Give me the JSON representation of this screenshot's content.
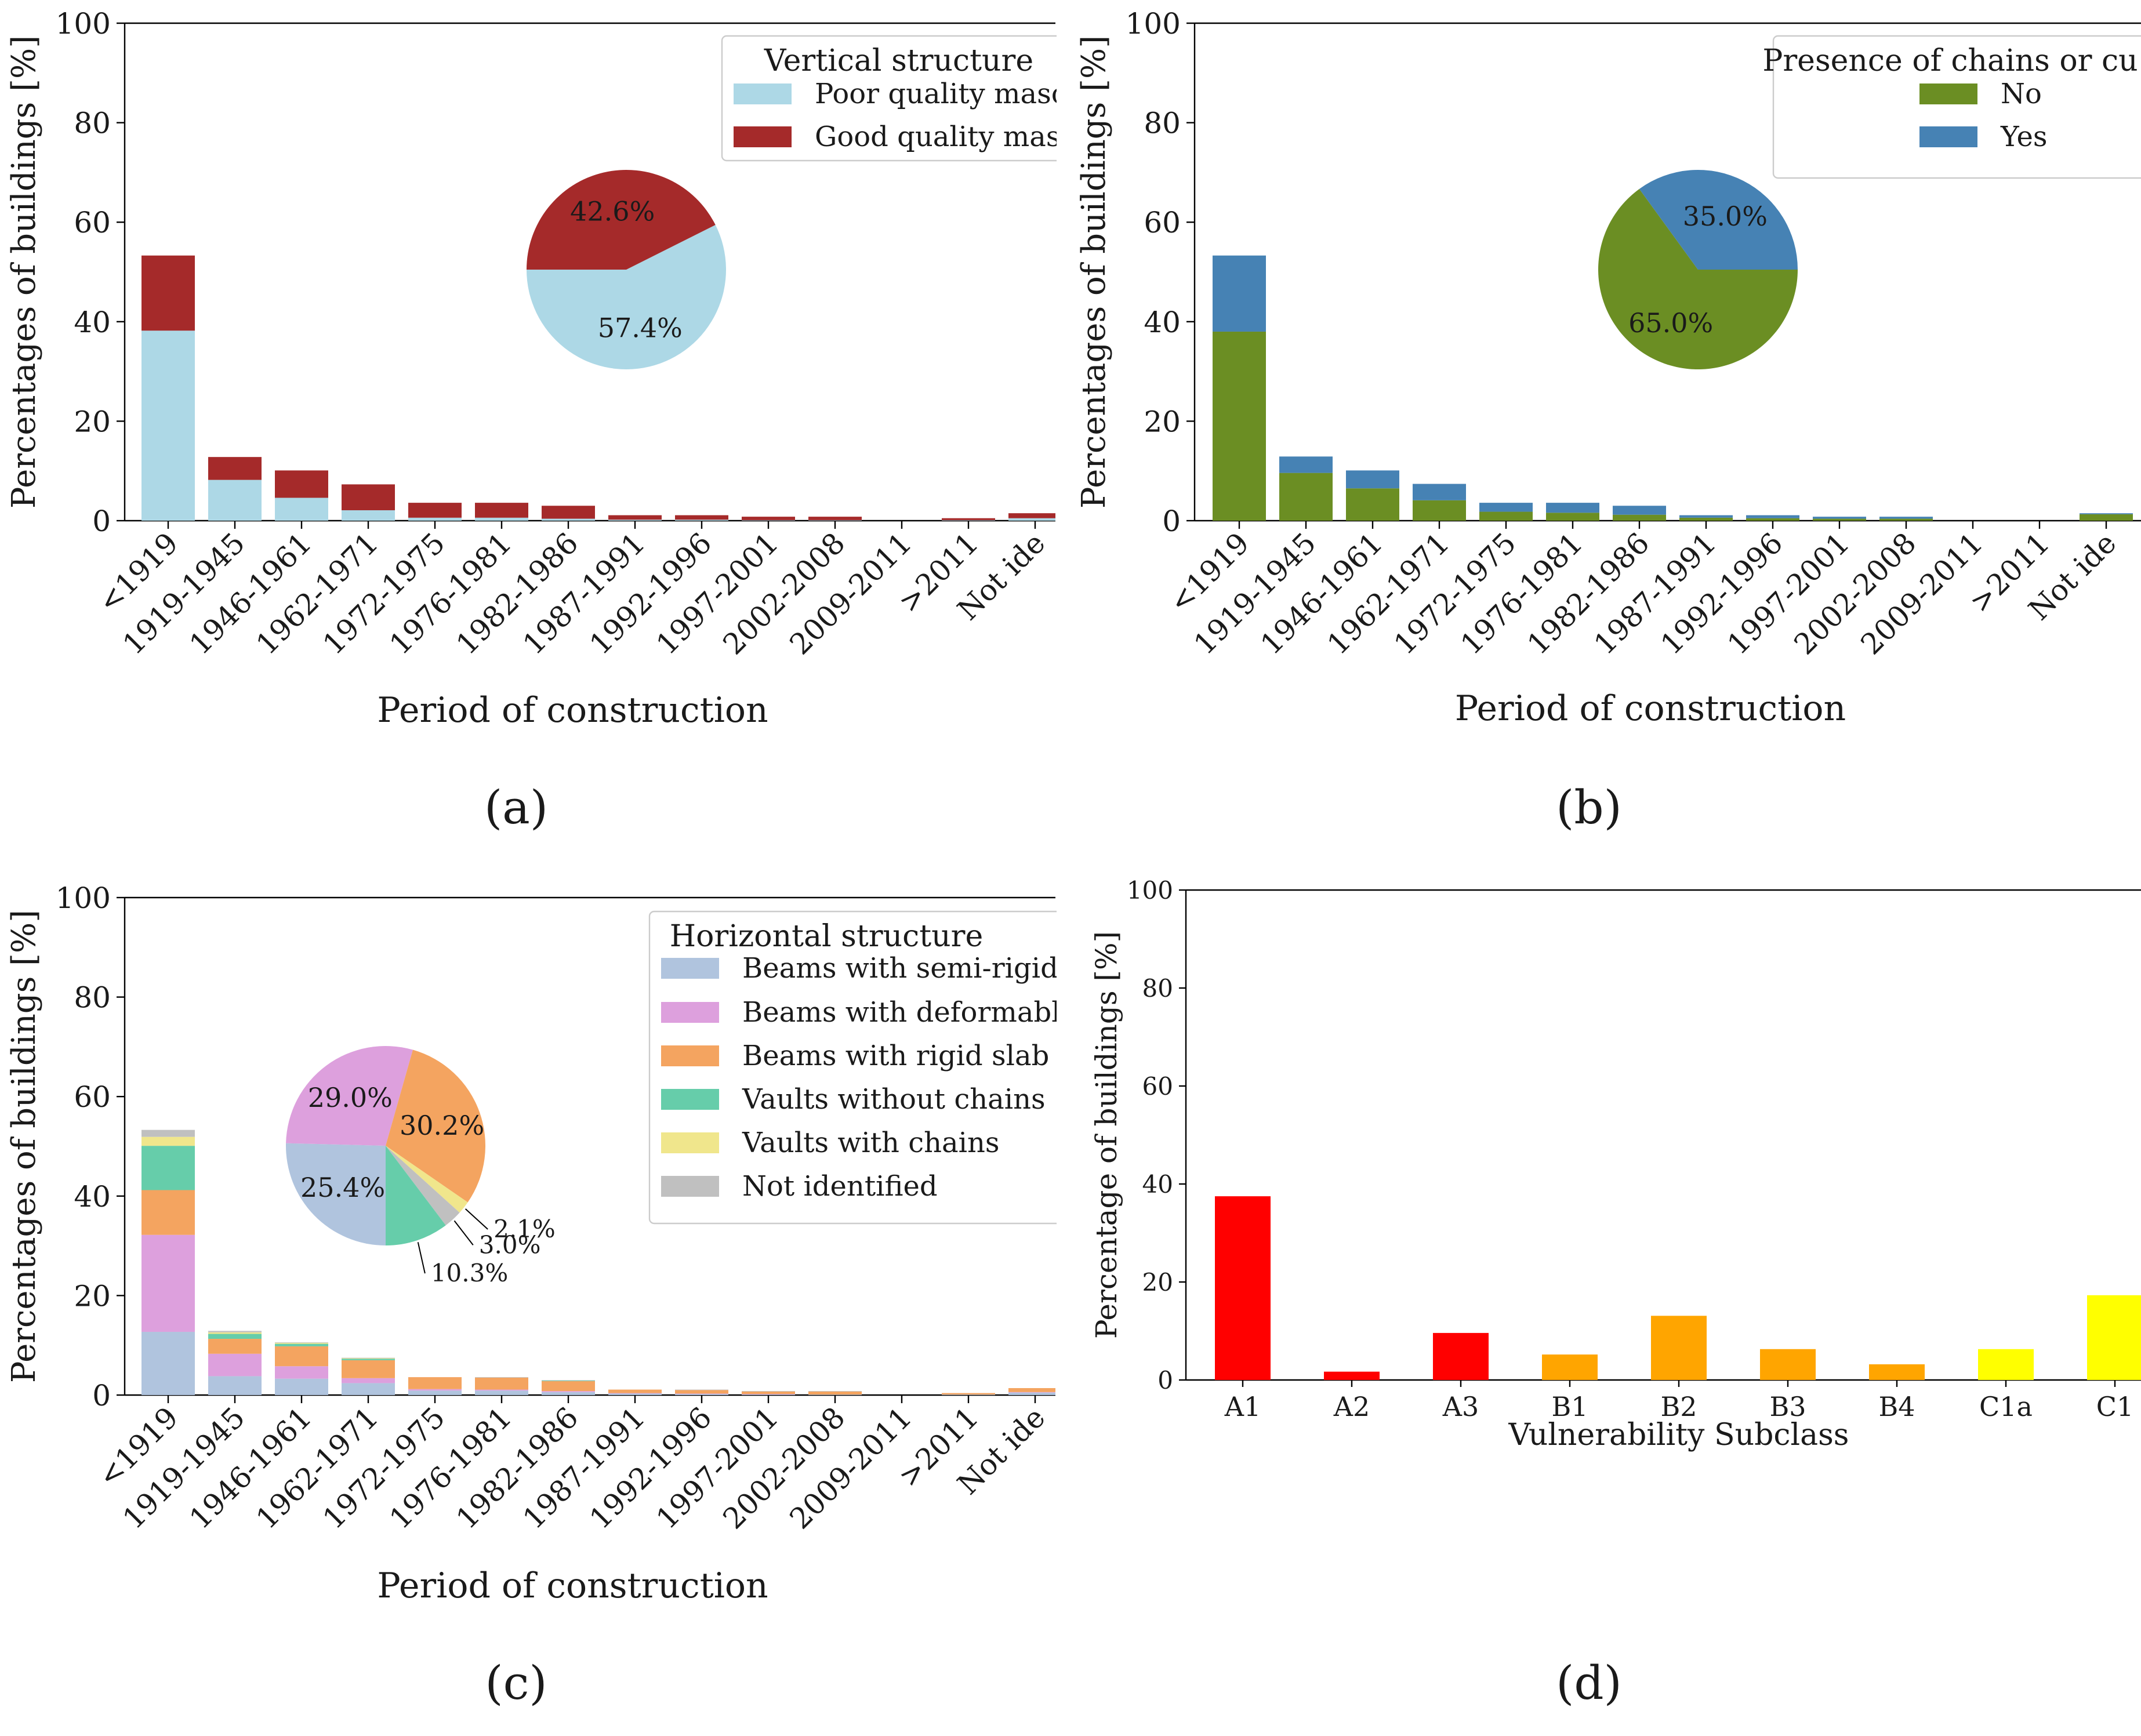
{
  "colors": {
    "poor_masonry": "#add8e6",
    "good_masonry": "#a52a2a",
    "no_chains": "#6b8e23",
    "yes_chains": "#4682b4",
    "semi_rigid": "#b0c4de",
    "deformable": "#dda0dd",
    "rigid": "#f4a460",
    "vaults_no_chains": "#66cdaa",
    "vaults_chains": "#f0e68c",
    "not_identified": "#c0c0c0",
    "class_a": "#ff0000",
    "class_b": "#ffa500",
    "class_c": "#ffff00"
  },
  "chart_data": [
    {
      "panel_label": "(a)",
      "type": "bar",
      "stacked": true,
      "xlabel": "Period of construction",
      "ylabel": "Percentages of buildings [%]",
      "ylim": [
        0,
        100
      ],
      "yticks": [
        "0",
        "20",
        "40",
        "60",
        "80",
        "100"
      ],
      "categories": [
        "<1919",
        "1919-1945",
        "1946-1961",
        "1962-1971",
        "1972-1975",
        "1976-1981",
        "1982-1986",
        "1987-1991",
        "1992-1996",
        "1997-2001",
        "2002-2008",
        "2009-2011",
        ">2011",
        "Not ide"
      ],
      "legend": {
        "title": "Vertical structure",
        "position": "top-right"
      },
      "series": [
        {
          "name": "Poor quality masor",
          "color_key": "poor_masonry",
          "values": [
            38.2,
            8.2,
            4.6,
            2.1,
            0.6,
            0.6,
            0.4,
            0.2,
            0.2,
            0.1,
            0.1,
            0.0,
            0.1,
            0.5
          ]
        },
        {
          "name": "Good quality maso",
          "color_key": "good_masonry",
          "values": [
            15.1,
            4.6,
            5.5,
            5.2,
            3.0,
            3.0,
            2.6,
            0.9,
            0.9,
            0.7,
            0.7,
            0.0,
            0.4,
            1.0
          ]
        }
      ],
      "pie": {
        "labels": [
          "57.4%",
          "42.6%"
        ],
        "values": [
          57.4,
          42.6
        ]
      }
    },
    {
      "panel_label": "(b)",
      "type": "bar",
      "stacked": true,
      "xlabel": "Period of construction",
      "ylabel": "Percentages of buildings [%]",
      "ylim": [
        0,
        100
      ],
      "yticks": [
        "0",
        "20",
        "40",
        "60",
        "80",
        "100"
      ],
      "categories": [
        "<1919",
        "1919-1945",
        "1946-1961",
        "1962-1971",
        "1972-1975",
        "1976-1981",
        "1982-1986",
        "1987-1991",
        "1992-1996",
        "1997-2001",
        "2002-2008",
        "2009-2011",
        ">2011",
        "Not ide"
      ],
      "legend": {
        "title": "Presence of chains or cu",
        "position": "top-right"
      },
      "series": [
        {
          "name": "No",
          "color_key": "no_chains",
          "values": [
            38.0,
            9.6,
            6.5,
            4.1,
            1.8,
            1.6,
            1.2,
            0.6,
            0.5,
            0.4,
            0.4,
            0.0,
            0.0,
            1.3
          ]
        },
        {
          "name": "Yes",
          "color_key": "yes_chains",
          "values": [
            15.3,
            3.3,
            3.6,
            3.3,
            1.8,
            2.0,
            1.8,
            0.5,
            0.6,
            0.4,
            0.4,
            0.0,
            0.0,
            0.2
          ]
        }
      ],
      "pie": {
        "labels": [
          "65.0%",
          "35.0%"
        ],
        "values": [
          65.0,
          35.0
        ]
      }
    },
    {
      "panel_label": "(c)",
      "type": "bar",
      "stacked": true,
      "xlabel": "Period of construction",
      "ylabel": "Percentages of buildings [%]",
      "ylim": [
        0,
        100
      ],
      "yticks": [
        "0",
        "20",
        "40",
        "60",
        "80",
        "100"
      ],
      "categories": [
        "<1919",
        "1919-1945",
        "1946-1961",
        "1962-1971",
        "1972-1975",
        "1976-1981",
        "1982-1986",
        "1987-1991",
        "1992-1996",
        "1997-2001",
        "2002-2008",
        "2009-2011",
        ">2011",
        "Not ide"
      ],
      "legend": {
        "title": "Horizontal structure",
        "position": "top-right"
      },
      "series": [
        {
          "name": "Beams with semi-rigid sl",
          "color_key": "semi_rigid",
          "values": [
            12.7,
            3.8,
            3.3,
            2.4,
            0.9,
            0.9,
            0.6,
            0.3,
            0.2,
            0.1,
            0.1,
            0.0,
            0.1,
            0.5
          ]
        },
        {
          "name": "Beams with deformable s",
          "color_key": "deformable",
          "values": [
            19.5,
            4.5,
            2.5,
            1.0,
            0.3,
            0.2,
            0.2,
            0.1,
            0.1,
            0.1,
            0.0,
            0.0,
            0.0,
            0.1
          ]
        },
        {
          "name": "Beams with rigid slab",
          "color_key": "rigid",
          "values": [
            9.0,
            3.0,
            4.0,
            3.6,
            2.4,
            2.4,
            2.0,
            0.7,
            0.7,
            0.5,
            0.6,
            0.0,
            0.3,
            0.8
          ]
        },
        {
          "name": "Vaults without chains",
          "color_key": "vaults_no_chains",
          "values": [
            8.9,
            1.0,
            0.5,
            0.3,
            0.0,
            0.0,
            0.1,
            0.0,
            0.0,
            0.0,
            0.0,
            0.0,
            0.0,
            0.0
          ]
        },
        {
          "name": "Vaults with chains",
          "color_key": "vaults_chains",
          "values": [
            1.8,
            0.3,
            0.2,
            0.1,
            0.0,
            0.0,
            0.0,
            0.0,
            0.0,
            0.0,
            0.0,
            0.0,
            0.0,
            0.0
          ]
        },
        {
          "name": "Not identified",
          "color_key": "not_identified",
          "values": [
            1.4,
            0.3,
            0.1,
            0.1,
            0.0,
            0.1,
            0.1,
            0.0,
            0.1,
            0.1,
            0.1,
            0.0,
            0.0,
            0.0
          ]
        }
      ],
      "pie": {
        "labels": [
          "25.4%",
          "29.0%",
          "30.2%",
          "2.1%",
          "3.0%",
          "10.3%"
        ],
        "values": [
          25.4,
          29.0,
          30.2,
          2.1,
          3.0,
          10.3
        ],
        "order_keys": [
          "semi_rigid",
          "deformable",
          "rigid",
          "vaults_chains",
          "not_identified",
          "vaults_no_chains"
        ]
      }
    },
    {
      "panel_label": "(d)",
      "type": "bar",
      "stacked": false,
      "xlabel": "Vulnerability Subclass",
      "ylabel": "Percentage of buildings [%]",
      "ylim": [
        0,
        100
      ],
      "yticks": [
        "0",
        "20",
        "40",
        "60",
        "80",
        "100"
      ],
      "categories": [
        "A1",
        "A2",
        "A3",
        "B1",
        "B2",
        "B3",
        "B4",
        "C1a",
        "C1"
      ],
      "values": [
        37.5,
        1.7,
        9.6,
        5.2,
        13.1,
        6.3,
        3.2,
        6.3,
        17.3
      ],
      "color_keys": [
        "class_a",
        "class_a",
        "class_a",
        "class_b",
        "class_b",
        "class_b",
        "class_b",
        "class_c",
        "class_c"
      ]
    }
  ]
}
